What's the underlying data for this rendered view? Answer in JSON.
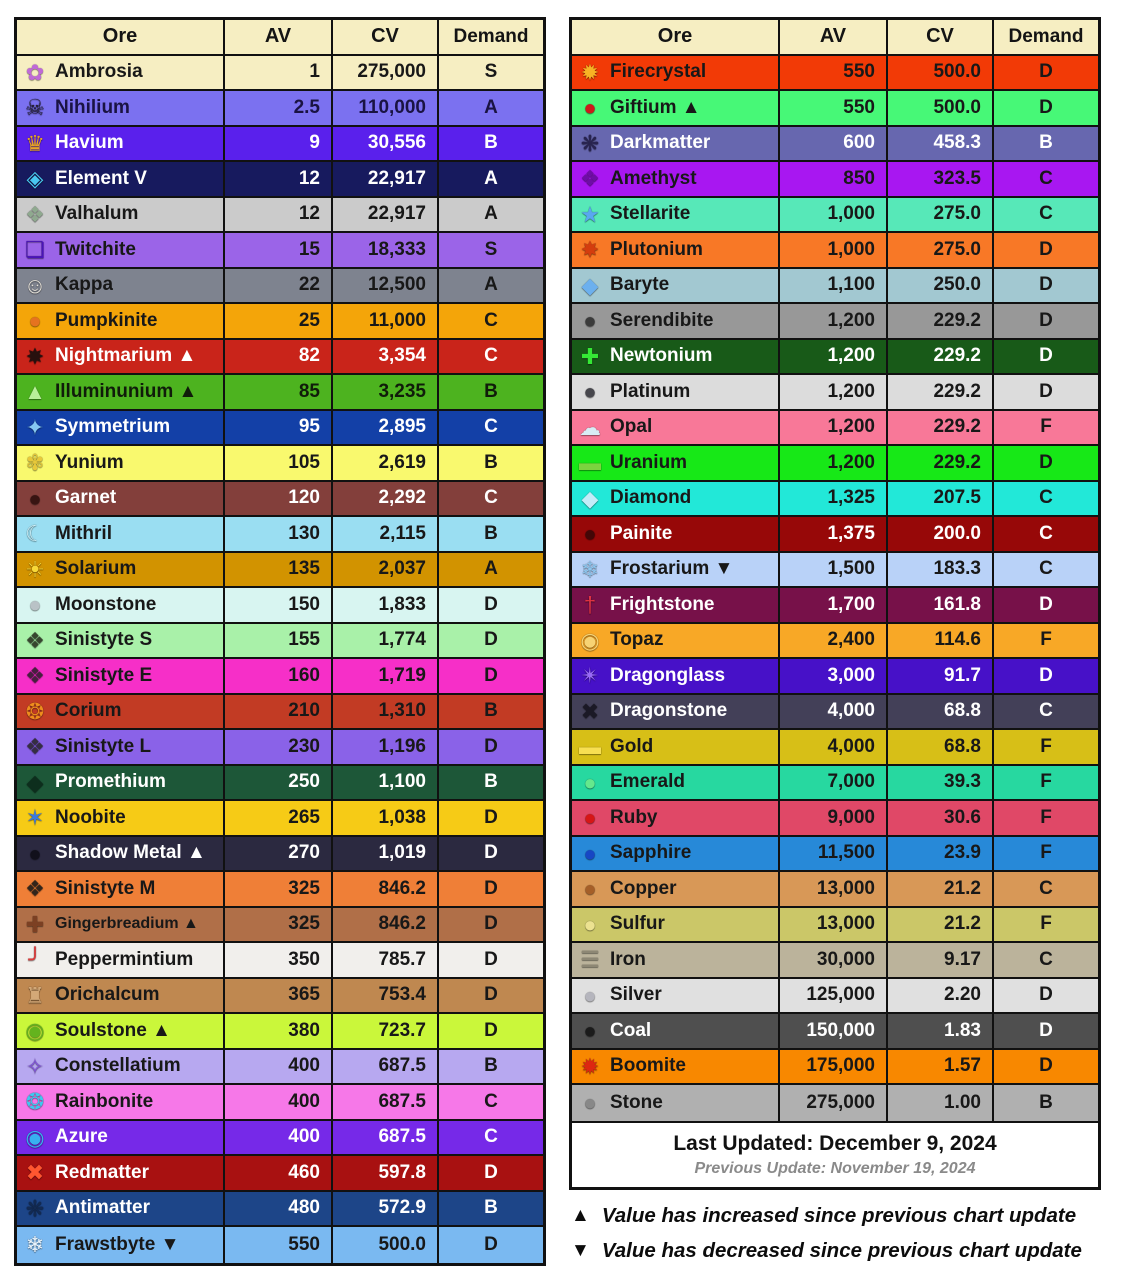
{
  "footer": {
    "last_updated": "Last Updated: December 9, 2024",
    "previous_update": "Previous Update: November 19, 2024"
  },
  "legend": {
    "increase_icon": "▲",
    "increase_text": "Value has increased since previous chart update",
    "decrease_icon": "▼",
    "decrease_text": "Value has decreased since previous chart update"
  },
  "colors": {
    "header_bg": "#f6eec2",
    "border": "#111111",
    "page_bg": "#ffffff"
  },
  "chart_data": [
    {
      "type": "table",
      "title": "Ore values (left table)",
      "columns": [
        "Ore",
        "AV",
        "CV",
        "Demand"
      ],
      "rows": [
        {
          "name": "Ambrosia",
          "av": "1",
          "cv": "275,000",
          "demand": "S",
          "bg": "#f6eec2",
          "fg": "#181818",
          "icon": "✿",
          "icon_color": "#c06ad8"
        },
        {
          "name": "Nihilium",
          "av": "2.5",
          "cv": "110,000",
          "demand": "A",
          "bg": "#7b71f0",
          "fg": "#1a1343",
          "icon": "☠",
          "icon_color": "#251f38"
        },
        {
          "name": "Havium",
          "av": "9",
          "cv": "30,556",
          "demand": "B",
          "bg": "#5a20ec",
          "fg": "#ffffff",
          "icon": "♛",
          "icon_color": "#e8a428"
        },
        {
          "name": "Element V",
          "av": "12",
          "cv": "22,917",
          "demand": "A",
          "bg": "#171a5e",
          "fg": "#ffffff",
          "icon": "◈",
          "icon_color": "#49c8f0"
        },
        {
          "name": "Valhalum",
          "av": "12",
          "cv": "22,917",
          "demand": "A",
          "bg": "#cbcbcb",
          "fg": "#181818",
          "icon": "❖",
          "icon_color": "#8fa98f"
        },
        {
          "name": "Twitchite",
          "av": "15",
          "cv": "18,333",
          "demand": "S",
          "bg": "#9b64e8",
          "fg": "#181818",
          "icon": "❏",
          "icon_color": "#4a14b8"
        },
        {
          "name": "Kappa",
          "av": "22",
          "cv": "12,500",
          "demand": "A",
          "bg": "#7e838f",
          "fg": "#181818",
          "icon": "☺",
          "icon_color": "#e6e2da"
        },
        {
          "name": "Pumpkinite",
          "av": "25",
          "cv": "11,000",
          "demand": "C",
          "bg": "#f4a509",
          "fg": "#181818",
          "icon": "●",
          "icon_color": "#e5731f"
        },
        {
          "name": "Nightmarium ▲",
          "av": "82",
          "cv": "3,354",
          "demand": "C",
          "bg": "#c9241a",
          "fg": "#ffffff",
          "icon": "✸",
          "icon_color": "#27100e"
        },
        {
          "name": "Illuminunium ▲",
          "av": "85",
          "cv": "3,235",
          "demand": "B",
          "bg": "#4db31f",
          "fg": "#101c0a",
          "icon": "▲",
          "icon_color": "#b9f09a"
        },
        {
          "name": "Symmetrium",
          "av": "95",
          "cv": "2,895",
          "demand": "C",
          "bg": "#1340a7",
          "fg": "#ffffff",
          "icon": "✦",
          "icon_color": "#85c8f2"
        },
        {
          "name": "Yunium",
          "av": "105",
          "cv": "2,619",
          "demand": "B",
          "bg": "#f9f96e",
          "fg": "#181818",
          "icon": "✾",
          "icon_color": "#e8c93a"
        },
        {
          "name": "Garnet",
          "av": "120",
          "cv": "2,292",
          "demand": "C",
          "bg": "#833f3b",
          "fg": "#ffffff",
          "icon": "●",
          "icon_color": "#381412"
        },
        {
          "name": "Mithril",
          "av": "130",
          "cv": "2,115",
          "demand": "B",
          "bg": "#9adef2",
          "fg": "#181818",
          "icon": "☾",
          "icon_color": "#cdf2fa"
        },
        {
          "name": "Solarium",
          "av": "135",
          "cv": "2,037",
          "demand": "A",
          "bg": "#d29300",
          "fg": "#181818",
          "icon": "☀",
          "icon_color": "#f8d838"
        },
        {
          "name": "Moonstone",
          "av": "150",
          "cv": "1,833",
          "demand": "D",
          "bg": "#d8f5f1",
          "fg": "#181818",
          "icon": "●",
          "icon_color": "#b9c2c6"
        },
        {
          "name": "Sinistyte S",
          "av": "155",
          "cv": "1,774",
          "demand": "D",
          "bg": "#a9f1a9",
          "fg": "#181818",
          "icon": "❖",
          "icon_color": "#37462f"
        },
        {
          "name": "Sinistyte E",
          "av": "160",
          "cv": "1,719",
          "demand": "D",
          "bg": "#f62fc8",
          "fg": "#181818",
          "icon": "❖",
          "icon_color": "#46203e"
        },
        {
          "name": "Corium",
          "av": "210",
          "cv": "1,310",
          "demand": "B",
          "bg": "#c23b24",
          "fg": "#181818",
          "icon": "❂",
          "icon_color": "#ef8d1d"
        },
        {
          "name": "Sinistyte L",
          "av": "230",
          "cv": "1,196",
          "demand": "D",
          "bg": "#8a62e8",
          "fg": "#181818",
          "icon": "❖",
          "icon_color": "#352e42"
        },
        {
          "name": "Promethium",
          "av": "250",
          "cv": "1,100",
          "demand": "B",
          "bg": "#1d5738",
          "fg": "#ffffff",
          "icon": "◆",
          "icon_color": "#0d2e1d"
        },
        {
          "name": "Noobite",
          "av": "265",
          "cv": "1,038",
          "demand": "D",
          "bg": "#f6cb16",
          "fg": "#181818",
          "icon": "✶",
          "icon_color": "#3a7ae0"
        },
        {
          "name": "Shadow Metal ▲",
          "av": "270",
          "cv": "1,019",
          "demand": "D",
          "bg": "#2b2940",
          "fg": "#ffffff",
          "icon": "●",
          "icon_color": "#11101b"
        },
        {
          "name": "Sinistyte M",
          "av": "325",
          "cv": "846.2",
          "demand": "D",
          "bg": "#ef7f37",
          "fg": "#181818",
          "icon": "❖",
          "icon_color": "#33251b"
        },
        {
          "name": "Gingerbreadium ▲",
          "av": "325",
          "cv": "846.2",
          "demand": "D",
          "bg": "#b06f48",
          "fg": "#181818",
          "icon": "✚",
          "icon_color": "#7c4023"
        },
        {
          "name": "Peppermintium",
          "av": "350",
          "cv": "785.7",
          "demand": "D",
          "bg": "#f1efec",
          "fg": "#181818",
          "icon": "╯",
          "icon_color": "#dd3c3c"
        },
        {
          "name": "Orichalcum",
          "av": "365",
          "cv": "753.4",
          "demand": "D",
          "bg": "#bf8850",
          "fg": "#181818",
          "icon": "♜",
          "icon_color": "#d3a877"
        },
        {
          "name": "Soulstone ▲",
          "av": "380",
          "cv": "723.7",
          "demand": "D",
          "bg": "#caf73a",
          "fg": "#181818",
          "icon": "◉",
          "icon_color": "#64b31e"
        },
        {
          "name": "Constellatium",
          "av": "400",
          "cv": "687.5",
          "demand": "B",
          "bg": "#b7a8f0",
          "fg": "#181818",
          "icon": "✧",
          "icon_color": "#8453e0"
        },
        {
          "name": "Rainbonite",
          "av": "400",
          "cv": "687.5",
          "demand": "C",
          "bg": "#f678e8",
          "fg": "#181818",
          "icon": "❂",
          "icon_color": "#3fc8ef"
        },
        {
          "name": "Azure",
          "av": "400",
          "cv": "687.5",
          "demand": "C",
          "bg": "#7629e8",
          "fg": "#ffffff",
          "icon": "◉",
          "icon_color": "#38b0f0"
        },
        {
          "name": "Redmatter",
          "av": "460",
          "cv": "597.8",
          "demand": "D",
          "bg": "#a81111",
          "fg": "#ffffff",
          "icon": "✖",
          "icon_color": "#ff5630"
        },
        {
          "name": "Antimatter",
          "av": "480",
          "cv": "572.9",
          "demand": "B",
          "bg": "#1d4588",
          "fg": "#ffffff",
          "icon": "❋",
          "icon_color": "#132a52"
        },
        {
          "name": "Frawstbyte ▼",
          "av": "550",
          "cv": "500.0",
          "demand": "D",
          "bg": "#7ab9f1",
          "fg": "#181818",
          "icon": "❄",
          "icon_color": "#e9f5fe"
        }
      ]
    },
    {
      "type": "table",
      "title": "Ore values (right table)",
      "columns": [
        "Ore",
        "AV",
        "CV",
        "Demand"
      ],
      "rows": [
        {
          "name": "Firecrystal",
          "av": "550",
          "cv": "500.0",
          "demand": "D",
          "bg": "#f23a06",
          "fg": "#181818",
          "icon": "✹",
          "icon_color": "#f8b224"
        },
        {
          "name": "Giftium ▲",
          "av": "550",
          "cv": "500.0",
          "demand": "D",
          "bg": "#47f877",
          "fg": "#181818",
          "icon": "●",
          "icon_color": "#cd1a1a"
        },
        {
          "name": "Darkmatter",
          "av": "600",
          "cv": "458.3",
          "demand": "B",
          "bg": "#6767af",
          "fg": "#ffffff",
          "icon": "❋",
          "icon_color": "#282350"
        },
        {
          "name": "Amethyst",
          "av": "850",
          "cv": "323.5",
          "demand": "C",
          "bg": "#a817f1",
          "fg": "#181818",
          "icon": "❖",
          "icon_color": "#6e0da6"
        },
        {
          "name": "Stellarite",
          "av": "1,000",
          "cv": "275.0",
          "demand": "C",
          "bg": "#57e8b8",
          "fg": "#181818",
          "icon": "★",
          "icon_color": "#59a7f0"
        },
        {
          "name": "Plutonium",
          "av": "1,000",
          "cv": "275.0",
          "demand": "D",
          "bg": "#f87826",
          "fg": "#181818",
          "icon": "✸",
          "icon_color": "#d43d0e"
        },
        {
          "name": "Baryte",
          "av": "1,100",
          "cv": "250.0",
          "demand": "D",
          "bg": "#a2c8d1",
          "fg": "#181818",
          "icon": "◆",
          "icon_color": "#6cb0ee"
        },
        {
          "name": "Serendibite",
          "av": "1,200",
          "cv": "229.2",
          "demand": "D",
          "bg": "#989898",
          "fg": "#181818",
          "icon": "●",
          "icon_color": "#3b3b3b"
        },
        {
          "name": "Newtonium",
          "av": "1,200",
          "cv": "229.2",
          "demand": "D",
          "bg": "#185a18",
          "fg": "#ffffff",
          "icon": "✚",
          "icon_color": "#35e835"
        },
        {
          "name": "Platinum",
          "av": "1,200",
          "cv": "229.2",
          "demand": "D",
          "bg": "#dcdcdc",
          "fg": "#181818",
          "icon": "●",
          "icon_color": "#47474d"
        },
        {
          "name": "Opal",
          "av": "1,200",
          "cv": "229.2",
          "demand": "F",
          "bg": "#f87898",
          "fg": "#181818",
          "icon": "☁",
          "icon_color": "#d8ecf4"
        },
        {
          "name": "Uranium",
          "av": "1,200",
          "cv": "229.2",
          "demand": "D",
          "bg": "#17e817",
          "fg": "#181818",
          "icon": "▬",
          "icon_color": "#7dd33f"
        },
        {
          "name": "Diamond",
          "av": "1,325",
          "cv": "207.5",
          "demand": "C",
          "bg": "#22e8d8",
          "fg": "#181818",
          "icon": "◆",
          "icon_color": "#c3ecf8"
        },
        {
          "name": "Painite",
          "av": "1,375",
          "cv": "200.0",
          "demand": "C",
          "bg": "#970808",
          "fg": "#ffffff",
          "icon": "●",
          "icon_color": "#430707"
        },
        {
          "name": "Frostarium ▼",
          "av": "1,500",
          "cv": "183.3",
          "demand": "C",
          "bg": "#b9d2f8",
          "fg": "#181818",
          "icon": "❄",
          "icon_color": "#8ec6ef"
        },
        {
          "name": "Frightstone",
          "av": "1,700",
          "cv": "161.8",
          "demand": "D",
          "bg": "#771149",
          "fg": "#ffffff",
          "icon": "†",
          "icon_color": "#e03343"
        },
        {
          "name": "Topaz",
          "av": "2,400",
          "cv": "114.6",
          "demand": "F",
          "bg": "#f8a826",
          "fg": "#181818",
          "icon": "◉",
          "icon_color": "#f7d373"
        },
        {
          "name": "Dragonglass",
          "av": "3,000",
          "cv": "91.7",
          "demand": "D",
          "bg": "#4711c8",
          "fg": "#ffffff",
          "icon": "✴",
          "icon_color": "#9a6af8"
        },
        {
          "name": "Dragonstone",
          "av": "4,000",
          "cv": "68.8",
          "demand": "C",
          "bg": "#434058",
          "fg": "#ffffff",
          "icon": "✖",
          "icon_color": "#1b1926"
        },
        {
          "name": "Gold",
          "av": "4,000",
          "cv": "68.8",
          "demand": "F",
          "bg": "#d7bf17",
          "fg": "#181818",
          "icon": "▬",
          "icon_color": "#f7df52"
        },
        {
          "name": "Emerald",
          "av": "7,000",
          "cv": "39.3",
          "demand": "F",
          "bg": "#27d8a0",
          "fg": "#181818",
          "icon": "●",
          "icon_color": "#65e88d"
        },
        {
          "name": "Ruby",
          "av": "9,000",
          "cv": "30.6",
          "demand": "F",
          "bg": "#e04867",
          "fg": "#181818",
          "icon": "●",
          "icon_color": "#d61616"
        },
        {
          "name": "Sapphire",
          "av": "11,500",
          "cv": "23.9",
          "demand": "F",
          "bg": "#2789d8",
          "fg": "#181818",
          "icon": "●",
          "icon_color": "#1747c4"
        },
        {
          "name": "Copper",
          "av": "13,000",
          "cv": "21.2",
          "demand": "C",
          "bg": "#d89857",
          "fg": "#181818",
          "icon": "●",
          "icon_color": "#a55f28"
        },
        {
          "name": "Sulfur",
          "av": "13,000",
          "cv": "21.2",
          "demand": "F",
          "bg": "#cbc768",
          "fg": "#181818",
          "icon": "●",
          "icon_color": "#ece290"
        },
        {
          "name": "Iron",
          "av": "30,000",
          "cv": "9.17",
          "demand": "C",
          "bg": "#bbb39b",
          "fg": "#181818",
          "icon": "☰",
          "icon_color": "#8d8774"
        },
        {
          "name": "Silver",
          "av": "125,000",
          "cv": "2.20",
          "demand": "D",
          "bg": "#e0e0e0",
          "fg": "#181818",
          "icon": "●",
          "icon_color": "#b5b5bd"
        },
        {
          "name": "Coal",
          "av": "150,000",
          "cv": "1.83",
          "demand": "D",
          "bg": "#4f4f4f",
          "fg": "#ffffff",
          "icon": "●",
          "icon_color": "#1b1b1b"
        },
        {
          "name": "Boomite",
          "av": "175,000",
          "cv": "1.57",
          "demand": "D",
          "bg": "#f88800",
          "fg": "#181818",
          "icon": "✹",
          "icon_color": "#dd2711"
        },
        {
          "name": "Stone",
          "av": "275,000",
          "cv": "1.00",
          "demand": "B",
          "bg": "#b0b0b0",
          "fg": "#181818",
          "icon": "●",
          "icon_color": "#888888"
        }
      ]
    }
  ]
}
